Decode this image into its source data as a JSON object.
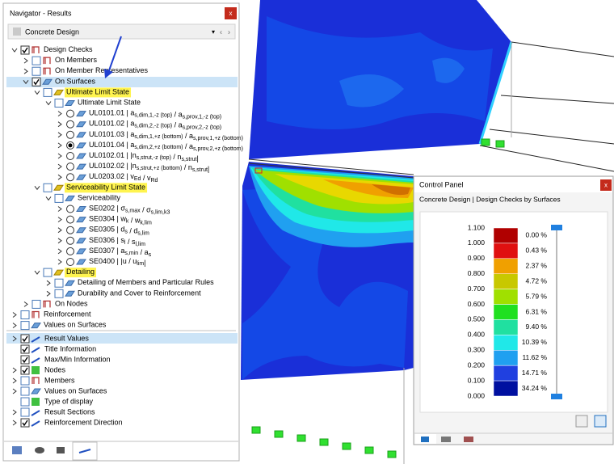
{
  "navigator": {
    "title": "Navigator - Results",
    "close": "x",
    "module": "Concrete Design",
    "tree": [
      {
        "segments": [
          {
            "t": "Design Checks"
          }
        ]
      },
      {
        "segments": [
          {
            "t": "On Members"
          }
        ]
      },
      {
        "segments": [
          {
            "t": "On Member Representatives"
          }
        ]
      },
      {
        "segments": [
          {
            "t": "On Surfaces"
          }
        ]
      },
      {
        "segments": [
          {
            "t": "Ultimate Limit State"
          }
        ]
      },
      {
        "segments": [
          {
            "t": "Ultimate Limit State"
          }
        ]
      },
      {
        "segments": [
          {
            "t": "UL0101.01 | a",
            "sub": "s,dim,1,-z (top)"
          },
          {
            "t": " / a",
            "sub": "s,prov,1,-z (top)"
          }
        ]
      },
      {
        "segments": [
          {
            "t": "UL0101.02 | a",
            "sub": "s,dim,2,-z (top)"
          },
          {
            "t": " / a",
            "sub": "s,prov,2,-z (top)"
          }
        ]
      },
      {
        "segments": [
          {
            "t": "UL0101.03 | a",
            "sub": "s,dim,1,+z (bottom)"
          },
          {
            "t": " / a",
            "sub": "s,prov,1,+z (bottom)"
          }
        ]
      },
      {
        "segments": [
          {
            "t": "UL0101.04 | a",
            "sub": "s,dim,2,+z (bottom)"
          },
          {
            "t": " / a",
            "sub": "s,prov,2,+z (bottom)"
          }
        ]
      },
      {
        "segments": [
          {
            "t": "UL0102.01 | |n",
            "sub": "s,strut,-z (top)"
          },
          {
            "t": " / n",
            "sub": "s,strut"
          },
          {
            "t": "|"
          }
        ]
      },
      {
        "segments": [
          {
            "t": "UL0102.02 | |n",
            "sub": "s,strut,+z (bottom)"
          },
          {
            "t": " / n",
            "sub": "s,strut"
          },
          {
            "t": "|"
          }
        ]
      },
      {
        "segments": [
          {
            "t": "UL0203.02 | v",
            "sub": "Ed"
          },
          {
            "t": " / v",
            "sub": "Rd"
          }
        ]
      },
      {
        "segments": [
          {
            "t": "Serviceability Limit State"
          }
        ]
      },
      {
        "segments": [
          {
            "t": "Serviceability"
          }
        ]
      },
      {
        "segments": [
          {
            "t": "SE0202 | σ",
            "sub": "s,max"
          },
          {
            "t": " / σ",
            "sub": "s,lim,k3"
          }
        ]
      },
      {
        "segments": [
          {
            "t": "SE0304 | w",
            "sub": "k"
          },
          {
            "t": " / w",
            "sub": "k,lim"
          }
        ]
      },
      {
        "segments": [
          {
            "t": "SE0305 | d",
            "sub": "s"
          },
          {
            "t": " / d",
            "sub": "s,lim"
          }
        ]
      },
      {
        "segments": [
          {
            "t": "SE0306 | s",
            "sub": "l"
          },
          {
            "t": " / s",
            "sub": "l,lim"
          }
        ]
      },
      {
        "segments": [
          {
            "t": "SE0307 | a",
            "sub": "s,min"
          },
          {
            "t": " / a",
            "sub": "s"
          }
        ]
      },
      {
        "segments": [
          {
            "t": "SE0400 | |u / u",
            "sub": "lim"
          },
          {
            "t": "|"
          }
        ]
      },
      {
        "segments": [
          {
            "t": "Detailing"
          }
        ]
      },
      {
        "segments": [
          {
            "t": "Detailing of Members and Particular Rules"
          }
        ]
      },
      {
        "segments": [
          {
            "t": "Durability and Cover to Reinforcement"
          }
        ]
      },
      {
        "segments": [
          {
            "t": "On Nodes"
          }
        ]
      },
      {
        "segments": [
          {
            "t": "Reinforcement"
          }
        ]
      },
      {
        "segments": [
          {
            "t": "Values on Surfaces"
          }
        ]
      }
    ],
    "display": [
      "Result Values",
      "Title Information",
      "Max/Min Information",
      "Nodes",
      "Members",
      "Values on Surfaces",
      "Type of display",
      "Result Sections",
      "Reinforcement Direction"
    ]
  },
  "control_panel": {
    "title": "Control Panel",
    "close": "x",
    "subtitle": "Concrete Design | Design Checks by Surfaces",
    "scale_labels": [
      "1.100",
      "1.000",
      "0.900",
      "0.800",
      "0.700",
      "0.600",
      "0.500",
      "0.400",
      "0.300",
      "0.200",
      "0.100",
      "0.000"
    ],
    "colors": [
      "#b00000",
      "#e01010",
      "#f0a000",
      "#c8c800",
      "#a0e000",
      "#20e020",
      "#20e0a0",
      "#20e8e8",
      "#20a0f0",
      "#2040e0",
      "#0010a0"
    ],
    "shares": [
      "0.00 %",
      "0.43 %",
      "2.37 %",
      "4.72 %",
      "5.79 %",
      "6.31 %",
      "9.40 %",
      "10.39 %",
      "11.62 %",
      "14.71 %",
      "34.24 %"
    ]
  }
}
